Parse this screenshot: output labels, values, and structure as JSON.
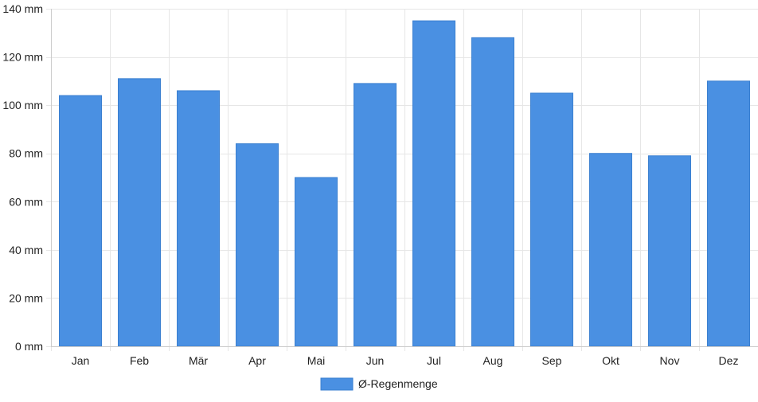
{
  "chart_data": {
    "type": "bar",
    "categories": [
      "Jan",
      "Feb",
      "Mär",
      "Apr",
      "Mai",
      "Jun",
      "Jul",
      "Aug",
      "Sep",
      "Okt",
      "Nov",
      "Dez"
    ],
    "series": [
      {
        "name": "Ø-Regenmenge",
        "color": "#4a90e2",
        "values": [
          104,
          111,
          106,
          84,
          70,
          109,
          135,
          128,
          105,
          80,
          79,
          110
        ]
      }
    ],
    "ylim": [
      0,
      140
    ],
    "yticks": [
      0,
      20,
      40,
      60,
      80,
      100,
      120,
      140
    ],
    "yunit": " mm",
    "grid": true,
    "legend": "bottom-center",
    "colors": {
      "bar": "#4a90e2",
      "bar_border": "#3a7fd0",
      "grid": "#e6e6e6",
      "axis": "#cccccc",
      "text": "#222222"
    }
  }
}
